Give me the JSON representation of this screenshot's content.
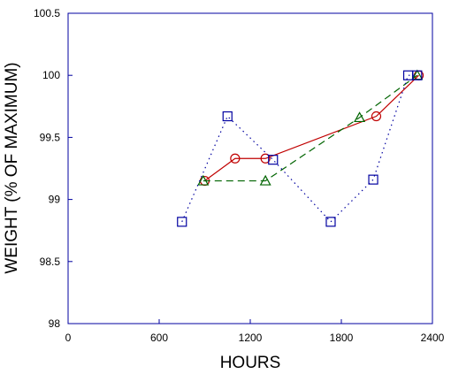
{
  "chart_data": {
    "type": "scatter",
    "title": "",
    "xlabel": "HOURS",
    "ylabel": "WEIGHT (% OF MAXIMUM)",
    "xlim": [
      0,
      2400
    ],
    "ylim": [
      98,
      100.5
    ],
    "x_ticks": [
      0,
      600,
      1200,
      1800,
      2400
    ],
    "y_ticks": [
      98,
      98.5,
      99,
      99.5,
      100,
      100.5
    ],
    "grid": false,
    "series": [
      {
        "marker": "circle",
        "line": "solid",
        "color": "#c00000",
        "x": [
          900,
          1100,
          1300,
          2030,
          2310
        ],
        "y": [
          99.15,
          99.33,
          99.33,
          99.67,
          100.0
        ]
      },
      {
        "marker": "triangle",
        "line": "dashed",
        "color": "#006400",
        "x": [
          890,
          1300,
          1920,
          2300
        ],
        "y": [
          99.15,
          99.15,
          99.66,
          100.0
        ]
      },
      {
        "marker": "square",
        "line": "dotted",
        "color": "#0000a0",
        "x": [
          750,
          1050,
          1350,
          1730,
          2010,
          2240,
          2300
        ],
        "y": [
          98.82,
          99.67,
          99.32,
          98.82,
          99.16,
          100.0,
          100.0
        ]
      }
    ]
  }
}
